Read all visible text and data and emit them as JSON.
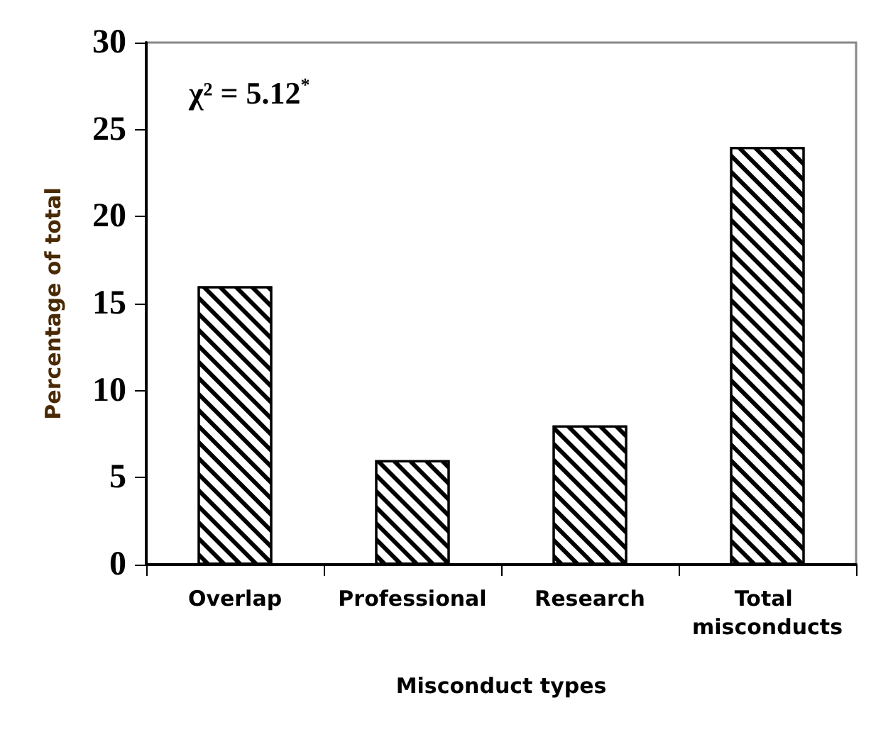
{
  "chart_data": {
    "type": "bar",
    "categories": [
      "Overlap",
      "Professional",
      "Research",
      "Total misconducts"
    ],
    "values": [
      16,
      6,
      8,
      24
    ],
    "color": "#000000",
    "xlabel": "Misconduct types",
    "ylabel": "Percentage of total",
    "ylim": [
      0,
      30
    ],
    "yticks": [
      0,
      5,
      10,
      15,
      20,
      25,
      30
    ],
    "annotations": [
      "χ² = 5.12$^{*}$"
    ],
    "grid": false
  }
}
